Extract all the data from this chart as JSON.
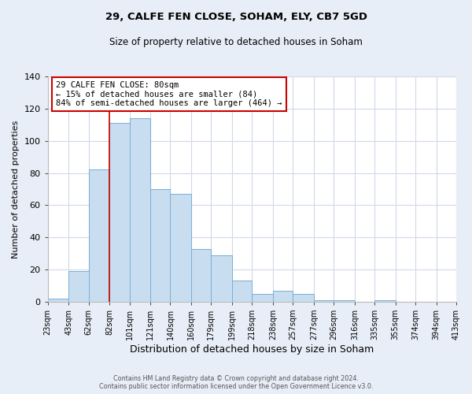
{
  "title": "29, CALFE FEN CLOSE, SOHAM, ELY, CB7 5GD",
  "subtitle": "Size of property relative to detached houses in Soham",
  "xlabel": "Distribution of detached houses by size in Soham",
  "ylabel": "Number of detached properties",
  "bar_left_edges": [
    23,
    43,
    62,
    82,
    101,
    121,
    140,
    160,
    179,
    199,
    218,
    238,
    257,
    277,
    296,
    316,
    335,
    355,
    374,
    394
  ],
  "bar_widths": [
    20,
    19,
    20,
    19,
    20,
    19,
    20,
    19,
    20,
    19,
    20,
    19,
    20,
    19,
    20,
    19,
    20,
    19,
    20,
    19
  ],
  "bar_heights": [
    2,
    19,
    82,
    111,
    114,
    70,
    67,
    33,
    29,
    13,
    5,
    7,
    5,
    1,
    1,
    0,
    1,
    0,
    0,
    0
  ],
  "bar_color": "#c8ddf0",
  "bar_edge_color": "#7aafd4",
  "vline_x": 82,
  "vline_color": "#cc0000",
  "annotation_text": "29 CALFE FEN CLOSE: 80sqm\n← 15% of detached houses are smaller (84)\n84% of semi-detached houses are larger (464) →",
  "annotation_box_facecolor": "#ffffff",
  "annotation_box_edgecolor": "#cc0000",
  "tick_labels": [
    "23sqm",
    "43sqm",
    "62sqm",
    "82sqm",
    "101sqm",
    "121sqm",
    "140sqm",
    "160sqm",
    "179sqm",
    "199sqm",
    "218sqm",
    "238sqm",
    "257sqm",
    "277sqm",
    "296sqm",
    "316sqm",
    "335sqm",
    "355sqm",
    "374sqm",
    "394sqm",
    "413sqm"
  ],
  "ylim": [
    0,
    140
  ],
  "yticks": [
    0,
    20,
    40,
    60,
    80,
    100,
    120,
    140
  ],
  "footer_text": "Contains HM Land Registry data © Crown copyright and database right 2024.\nContains public sector information licensed under the Open Government Licence v3.0.",
  "outer_bg_color": "#e8eef7",
  "plot_bg_color": "#ffffff",
  "grid_color": "#d0d8e8",
  "title_fontsize": 9.5,
  "subtitle_fontsize": 8.5,
  "xlabel_fontsize": 9,
  "ylabel_fontsize": 8,
  "tick_fontsize": 7,
  "ytick_fontsize": 8,
  "annotation_fontsize": 7.5,
  "footer_fontsize": 5.8
}
